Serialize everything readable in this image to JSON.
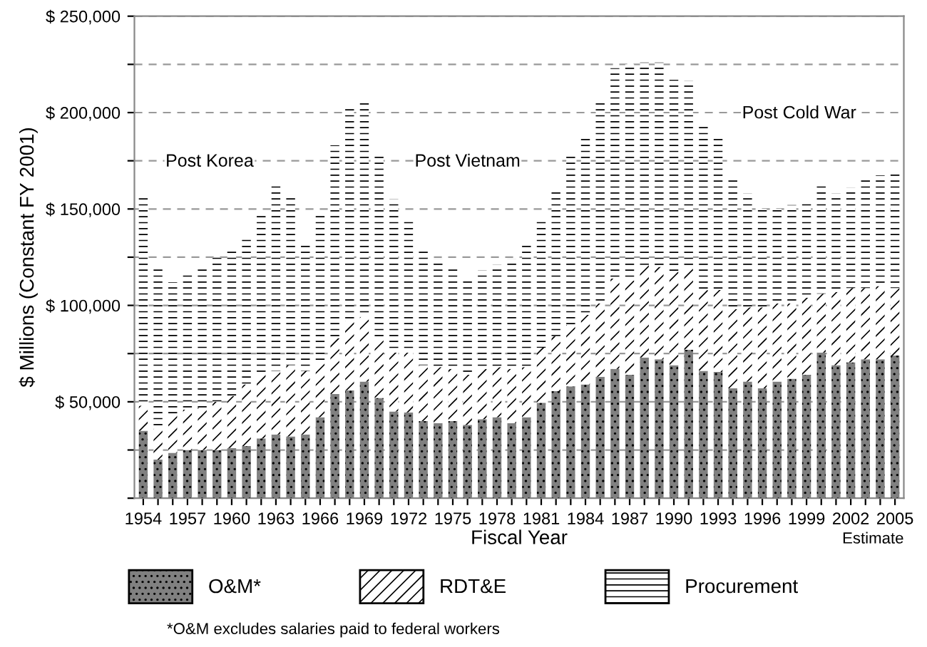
{
  "chart_data": {
    "type": "bar",
    "stacked": true,
    "xlabel": "Fiscal Year",
    "ylabel": "$ Millions (Constant FY 2001)",
    "categories": [
      "1954",
      null,
      null,
      "1957",
      null,
      null,
      "1960",
      null,
      null,
      "1963",
      null,
      null,
      "1966",
      null,
      null,
      "1969",
      null,
      null,
      "1972",
      null,
      null,
      "1975",
      null,
      null,
      "1978",
      null,
      null,
      "1981",
      null,
      null,
      "1984",
      null,
      null,
      "1987",
      null,
      null,
      "1990",
      null,
      null,
      "1993",
      null,
      null,
      "1996",
      null,
      null,
      "1999",
      null,
      null,
      "2002",
      null,
      null,
      "2005"
    ],
    "series": [
      {
        "name": "O&M*",
        "color": "#808080",
        "values": [
          35000,
          20000,
          23500,
          25000,
          25000,
          25000,
          26000,
          27000,
          31000,
          33000,
          32000,
          33000,
          42000,
          54000,
          56000,
          60500,
          52000,
          45000,
          44500,
          40000,
          39000,
          40000,
          38000,
          41000,
          42000,
          39000,
          42000,
          49500,
          55500,
          58000,
          59000,
          63000,
          67000,
          64000,
          73000,
          72000,
          69000,
          77000,
          66000,
          65500,
          57000,
          60500,
          57000,
          60500,
          62000,
          64000,
          75500,
          69000,
          70500,
          72000,
          72000,
          74000
        ]
      },
      {
        "name": "RDT&E",
        "color": "#ffffff",
        "values": [
          13000,
          16000,
          19500,
          21000,
          22000,
          25000,
          27000,
          32000,
          33000,
          33000,
          37000,
          33000,
          28000,
          29000,
          36000,
          33500,
          30000,
          30500,
          31000,
          29000,
          29000,
          27000,
          26000,
          26000,
          26000,
          28000,
          26000,
          28500,
          28500,
          32000,
          36000,
          38000,
          47000,
          49000,
          48000,
          48000,
          48500,
          42000,
          42000,
          42500,
          41000,
          38500,
          42000,
          40500,
          39000,
          40000,
          30500,
          38000,
          38500,
          37000,
          38000,
          35000
        ]
      },
      {
        "name": "Procurement",
        "color": "#ffffff",
        "values": [
          108000,
          84000,
          69000,
          71000,
          72000,
          75000,
          77000,
          76000,
          84500,
          97000,
          88000,
          65000,
          78000,
          100000,
          110000,
          111000,
          97000,
          79500,
          68500,
          61000,
          56000,
          52000,
          49000,
          51000,
          53000,
          57000,
          63000,
          67500,
          75000,
          87500,
          93500,
          106000,
          109000,
          112000,
          105000,
          106000,
          99500,
          97500,
          85500,
          79000,
          67000,
          59000,
          51000,
          49000,
          51000,
          49000,
          58000,
          51000,
          52000,
          57000,
          57500,
          61000
        ]
      }
    ],
    "ylim": [
      0,
      250000
    ],
    "yticks": [
      {
        "value": 0,
        "label": null
      },
      {
        "value": 25000,
        "label": null
      },
      {
        "value": 50000,
        "label": "$ 50,000"
      },
      {
        "value": 75000,
        "label": null
      },
      {
        "value": 100000,
        "label": "$ 100,000"
      },
      {
        "value": 125000,
        "label": null
      },
      {
        "value": 150000,
        "label": "$ 150,000"
      },
      {
        "value": 175000,
        "label": null
      },
      {
        "value": 200000,
        "label": "$ 200,000"
      },
      {
        "value": 225000,
        "label": null
      },
      {
        "value": 250000,
        "label": "$ 250,000"
      }
    ],
    "grid": "y",
    "legend": "bottom",
    "annotations": [
      "Post Korea",
      "Post Vietnam",
      "Post Cold War",
      "Estimate",
      "*O&M excludes salaries paid to federal workers"
    ]
  }
}
